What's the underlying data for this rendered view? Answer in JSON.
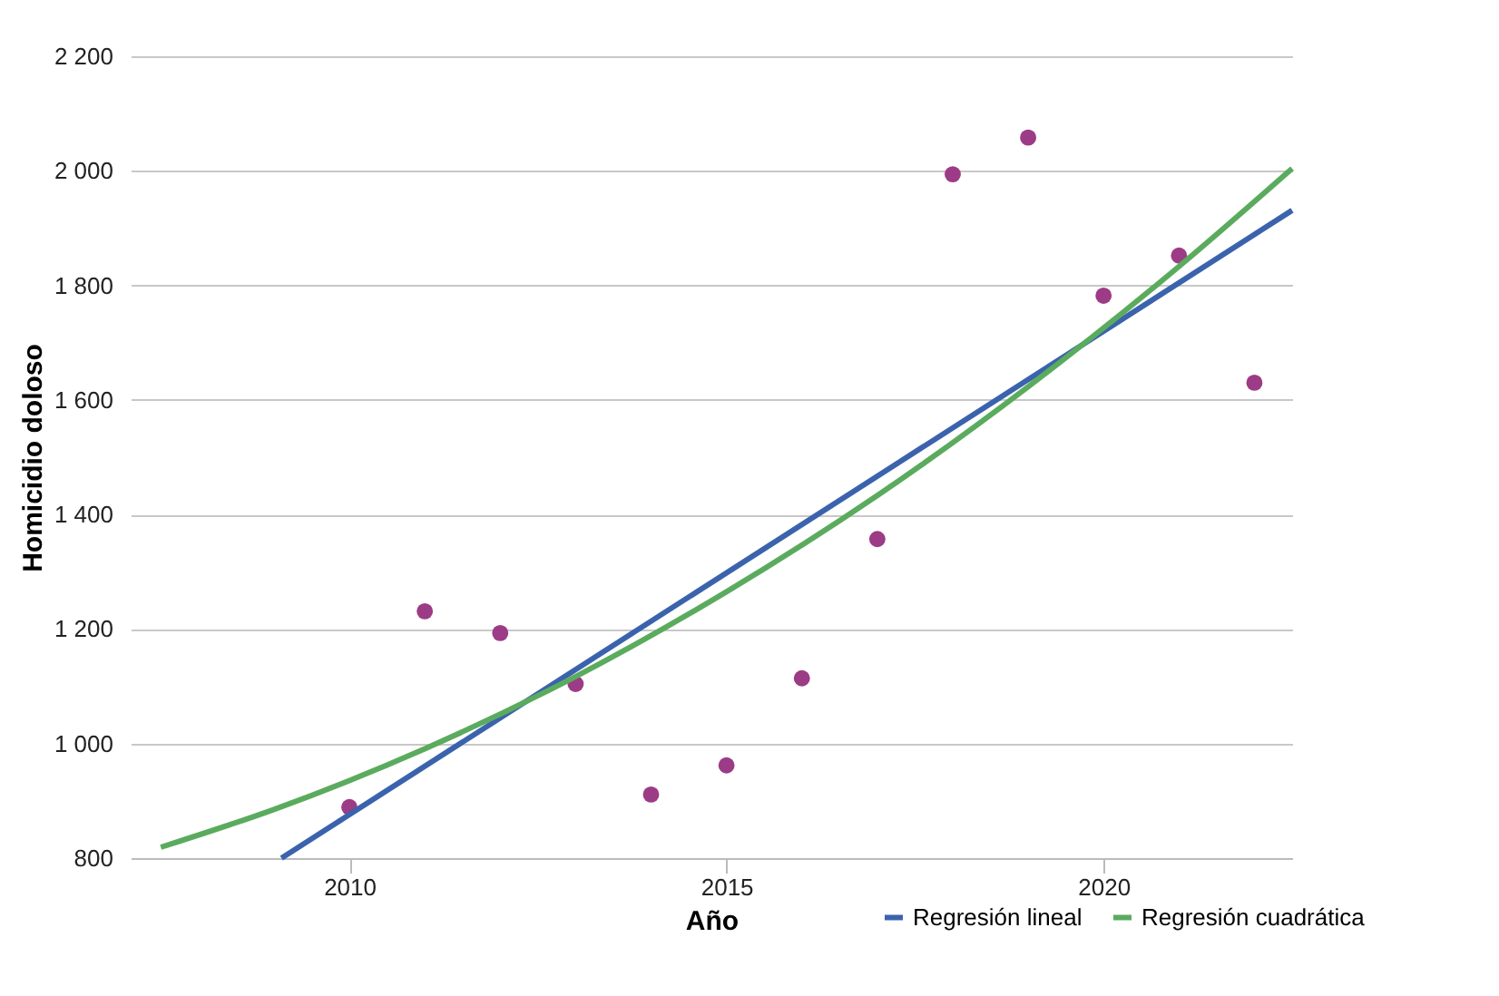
{
  "chart_data": {
    "type": "scatter",
    "xlabel": "Año",
    "ylabel": "Homicidio doloso",
    "xlim": [
      2007.1,
      2022.5
    ],
    "xticks": [
      2010,
      2015,
      2020
    ],
    "ylim": [
      800,
      2200
    ],
    "yticks": [
      {
        "value": 800,
        "label": "800"
      },
      {
        "value": 1000,
        "label": "1 000"
      },
      {
        "value": 1200,
        "label": "1 200"
      },
      {
        "value": 1400,
        "label": "1 400"
      },
      {
        "value": 1600,
        "label": "1 600"
      },
      {
        "value": 1800,
        "label": "1 800"
      },
      {
        "value": 2000,
        "label": "2 000"
      },
      {
        "value": 2200,
        "label": "2 200"
      }
    ],
    "grid": "y",
    "legend": "bottom right",
    "series": [
      {
        "marker": "circle",
        "color": "#9c3b86",
        "x": [
          2010,
          2011,
          2012,
          2013,
          2014,
          2015,
          2016,
          2017,
          2018,
          2019,
          2020,
          2021,
          2022
        ],
        "values": [
          889,
          1231,
          1193,
          1104,
          911,
          962,
          1114,
          1357,
          1994,
          2058,
          1782,
          1852,
          1630
        ]
      },
      {
        "type": "line",
        "marker": "none",
        "name": "Regresión lineal",
        "color": "#3b63ad",
        "x": [
          2009.1,
          2022.5
        ],
        "values": [
          800,
          1931
        ]
      },
      {
        "type": "line",
        "marker": "none",
        "name": "Regresión cuadrática",
        "color": "#5bab5e",
        "x": [
          2007.5,
          2009,
          2011,
          2013,
          2015,
          2017,
          2019,
          2021,
          2022.5
        ],
        "values": [
          819,
          885,
          991,
          1117,
          1265,
          1433,
          1623,
          1833,
          2004
        ]
      }
    ]
  }
}
